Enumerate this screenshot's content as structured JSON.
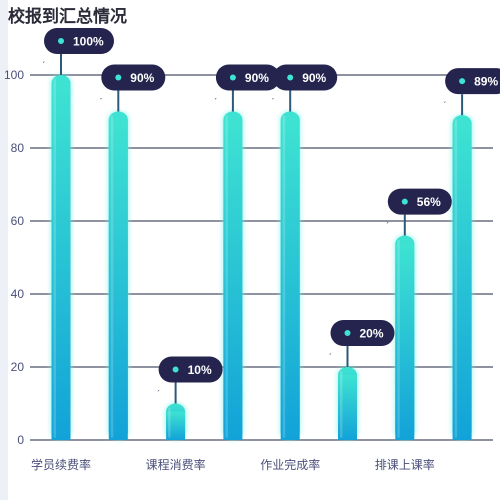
{
  "title": "校报到汇总情况",
  "chart_data": {
    "type": "bar",
    "categories": [
      "学员续费率",
      "",
      "课程消费率",
      "",
      "作业完成率",
      "",
      "排课上课率",
      ""
    ],
    "values": [
      100,
      90,
      10,
      90,
      90,
      20,
      56,
      89
    ],
    "data_labels": [
      "100%",
      "90%",
      "10%",
      "90%",
      "90%",
      "20%",
      "56%",
      "89%"
    ],
    "ylim": [
      0,
      100
    ],
    "yticks": [
      0,
      20,
      40,
      60,
      80,
      100
    ],
    "grid": true,
    "legend": "none",
    "xlabel": "",
    "ylabel": ""
  },
  "colors": {
    "bar_top": "#3ee3d2",
    "bar_bottom": "#12a2d8",
    "bar_glow": "#7bf2e6",
    "label_bg": "#24244f",
    "label_dot": "#3ee3d2",
    "leader_line": "#2c5a7a",
    "grid": "#1c2640",
    "axis_text": "#4a4f7a",
    "title": "#2b2b3a"
  }
}
